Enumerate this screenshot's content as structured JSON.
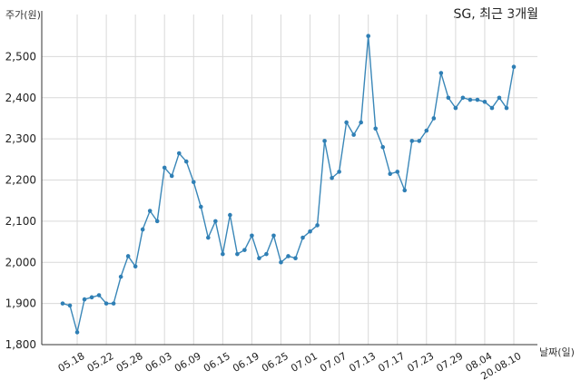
{
  "chart_data": {
    "type": "line",
    "title": "SG, 최근 3개월",
    "ylabel": "주가(원)",
    "xlabel": "날짜(일)",
    "ylim": [
      1800,
      2600
    ],
    "yticks": [
      1800,
      1900,
      2000,
      2100,
      2200,
      2300,
      2400,
      2500
    ],
    "ytick_labels": [
      "1,800",
      "1,900",
      "2,000",
      "2,100",
      "2,200",
      "2,300",
      "2,400",
      "2,500"
    ],
    "xtick_labels": [
      "05.18",
      "05.22",
      "05.28",
      "06.03",
      "06.09",
      "06.15",
      "06.19",
      "06.25",
      "07.01",
      "07.07",
      "07.13",
      "07.17",
      "07.23",
      "07.29",
      "08.04",
      "20.08.10"
    ],
    "xtick_index": [
      2,
      6,
      10,
      14,
      18,
      22,
      26,
      30,
      34,
      38,
      42,
      46,
      50,
      54,
      58,
      62
    ],
    "grid": true,
    "series": [
      {
        "values": [
          1900,
          1895,
          1830,
          1910,
          1915,
          1920,
          1900,
          1900,
          1965,
          2015,
          1990,
          2080,
          2125,
          2100,
          2230,
          2210,
          2265,
          2245,
          2195,
          2135,
          2060,
          2100,
          2020,
          2115,
          2020,
          2030,
          2065,
          2010,
          2020,
          2065,
          2000,
          2015,
          2010,
          2060,
          2075,
          2090,
          2295,
          2205,
          2220,
          2340,
          2310,
          2340,
          2550,
          2325,
          2280,
          2215,
          2220,
          2175,
          2295,
          2295,
          2320,
          2350,
          2460,
          2400,
          2375,
          2400,
          2395,
          2395,
          2390,
          2375,
          2400,
          2375,
          2475
        ]
      }
    ]
  }
}
